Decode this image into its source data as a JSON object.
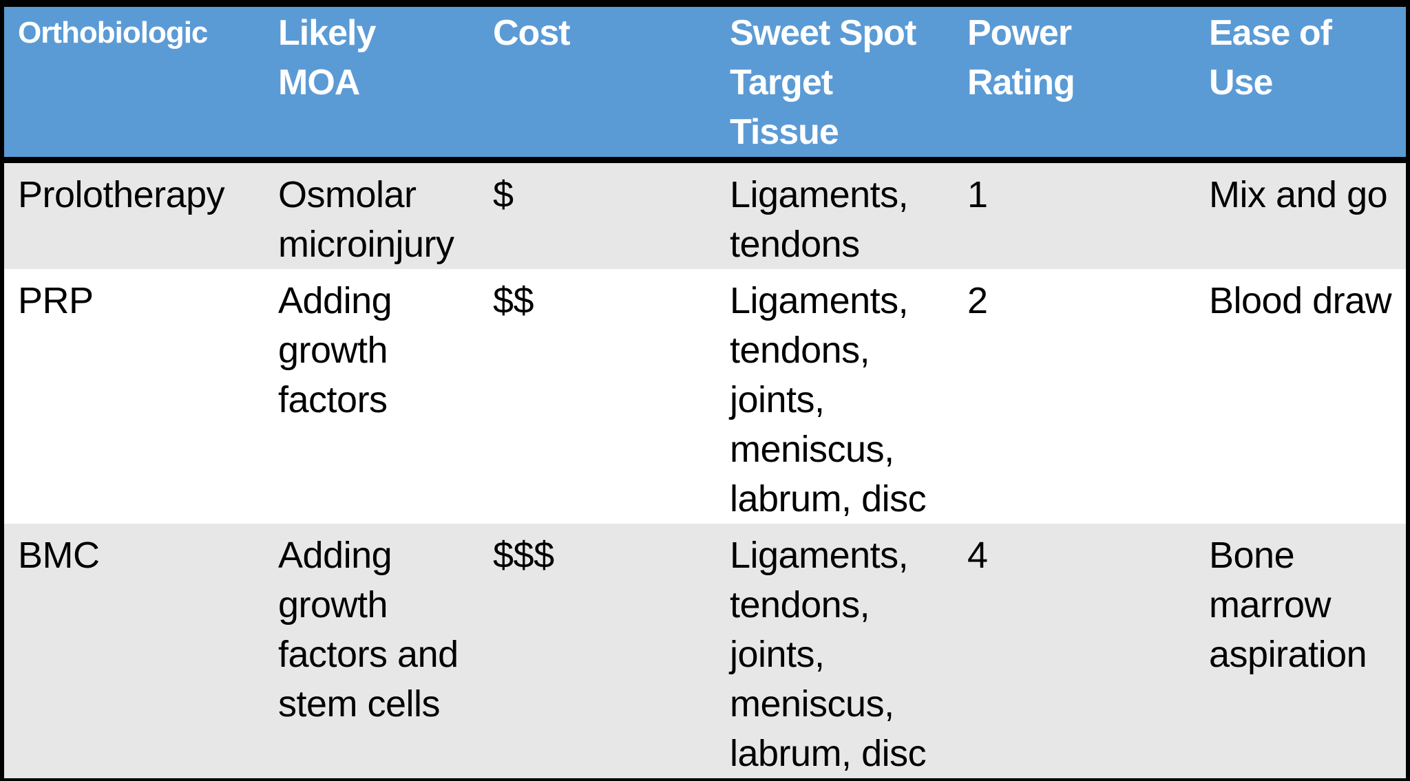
{
  "table": {
    "style": {
      "header_bg": "#5B9BD5",
      "header_text_color": "#FFFFFF",
      "alt_row_bg": "#E8E7E7",
      "row_bg": "#FFFFFF",
      "border_color": "#000000"
    },
    "columns": [
      {
        "label": "Orthobiologic"
      },
      {
        "label": "Likely\nMOA"
      },
      {
        "label": "Cost"
      },
      {
        "label": "Sweet Spot\nTarget\nTissue"
      },
      {
        "label": "Power\nRating"
      },
      {
        "label": "Ease of Use"
      }
    ],
    "rows": [
      {
        "cells": [
          "Prolotherapy",
          "Osmolar\nmicroinjury",
          "$",
          "Ligaments,\ntendons",
          "1",
          "Mix and go"
        ]
      },
      {
        "cells": [
          "PRP",
          "Adding\ngrowth\nfactors",
          "$$",
          "Ligaments,\ntendons,\njoints,\nmeniscus,\nlabrum, disc",
          "2",
          "Blood draw"
        ]
      },
      {
        "cells": [
          "BMC",
          "Adding\ngrowth\nfactors and\nstem cells",
          "$$$",
          "Ligaments,\ntendons,\njoints,\nmeniscus,\nlabrum, disc",
          "4",
          "Bone\nmarrow\naspiration"
        ]
      }
    ]
  },
  "chart_data": {
    "type": "table",
    "title": "",
    "columns": [
      "Orthobiologic",
      "Likely MOA",
      "Cost",
      "Sweet Spot Target Tissue",
      "Power Rating",
      "Ease of Use"
    ],
    "rows": [
      [
        "Prolotherapy",
        "Osmolar microinjury",
        "$",
        "Ligaments, tendons",
        "1",
        "Mix and go"
      ],
      [
        "PRP",
        "Adding growth factors",
        "$$",
        "Ligaments, tendons, joints, meniscus, labrum, disc",
        "2",
        "Blood draw"
      ],
      [
        "BMC",
        "Adding growth factors and stem cells",
        "$$$",
        "Ligaments, tendons, joints, meniscus, labrum, disc",
        "4",
        "Bone marrow aspiration"
      ]
    ],
    "power_rating_values": {
      "Prolotherapy": 1,
      "PRP": 2,
      "BMC": 4
    },
    "cost_levels": {
      "Prolotherapy": 1,
      "PRP": 2,
      "BMC": 3
    }
  }
}
